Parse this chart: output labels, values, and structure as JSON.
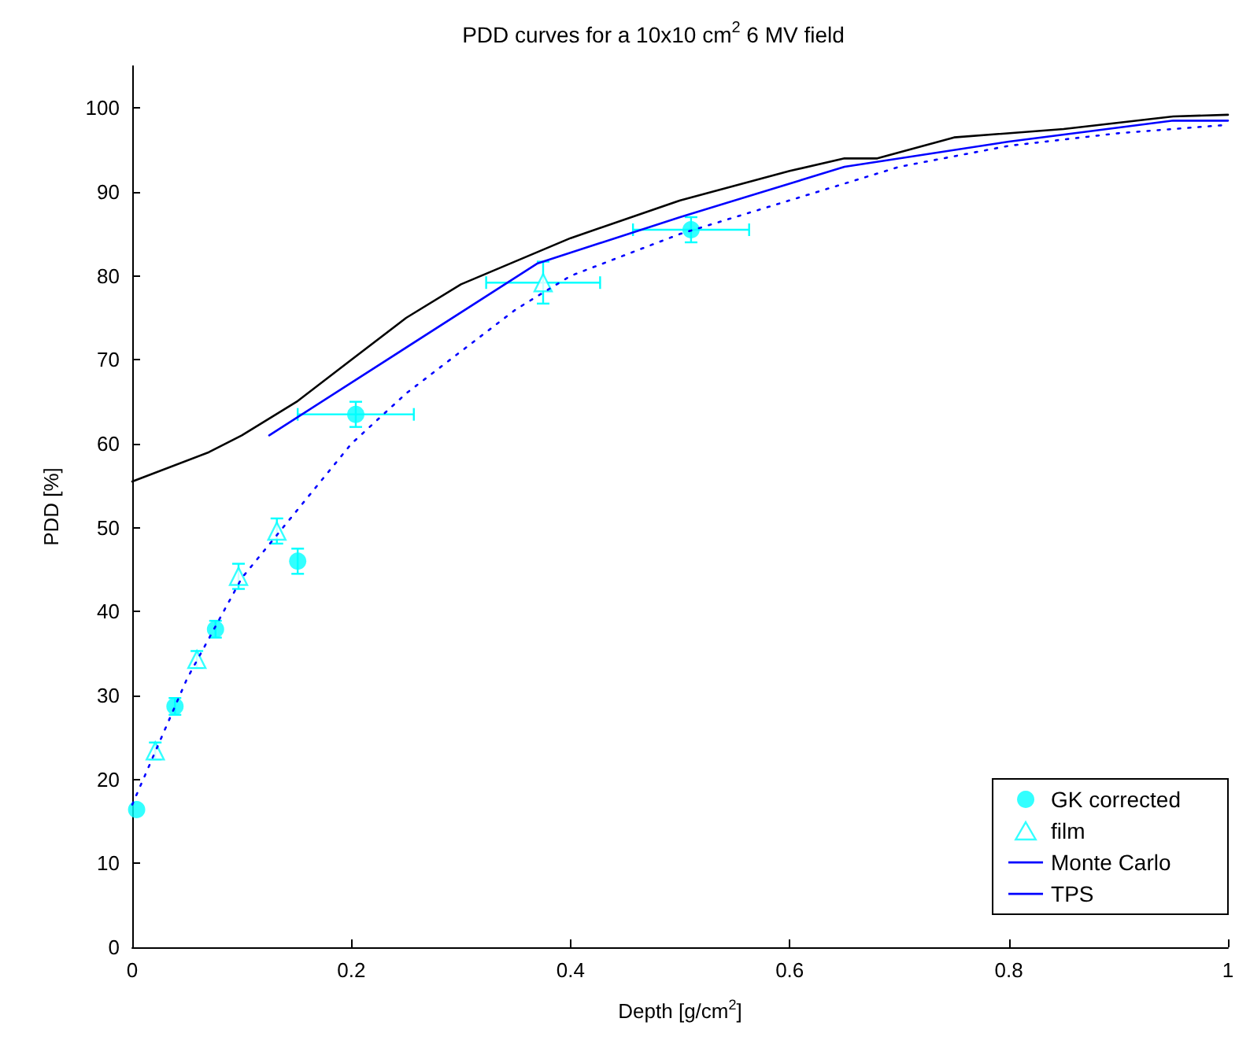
{
  "chart_data": {
    "type": "scatter",
    "title": "PDD curves for a 10x10 cm$^{2}$ 6 MV field",
    "xlabel": "Depth [g/cm$^{2}$]",
    "ylabel": "PDD [%]",
    "xlim": [
      0,
      1
    ],
    "xticks": [
      0,
      0.2,
      0.4,
      0.6,
      0.8,
      1
    ],
    "ylim": [
      0,
      105
    ],
    "yticks": [
      0,
      10,
      20,
      30,
      40,
      50,
      60,
      70,
      80,
      90,
      100
    ],
    "grid": false,
    "legend": "bottom right",
    "series": [
      {
        "name": "GK corrected",
        "marker": "circle",
        "color": "#00ffff",
        "x": [
          0.004,
          0.039,
          0.076,
          0.151,
          0.204,
          0.51
        ],
        "values": [
          16.4,
          28.7,
          37.9,
          46.0,
          63.5,
          85.5
        ],
        "errors": [
          null,
          1,
          1,
          1.5,
          1.5,
          1.5
        ],
        "xerrors": [
          null,
          null,
          null,
          null,
          0.053,
          0.053
        ]
      },
      {
        "name": "film",
        "marker": "triangle",
        "color": "#00ffff",
        "x": [
          0.021,
          0.059,
          0.097,
          0.132,
          0.375
        ],
        "values": [
          23.4,
          34.3,
          44.2,
          49.6,
          79.2
        ],
        "errors": [
          1,
          1,
          1.5,
          1.5,
          2.5
        ],
        "xerrors": [
          null,
          null,
          null,
          null,
          0.052
        ]
      },
      {
        "name": "Monte Carlo",
        "type": "line",
        "marker": "none",
        "line_style": "dotted",
        "color": "#0000ff",
        "x": [
          0,
          0.02,
          0.05,
          0.1,
          0.15,
          0.2,
          0.25,
          0.3,
          0.35,
          0.4,
          0.5,
          0.6,
          0.7,
          0.8,
          0.9,
          1
        ],
        "values": [
          17,
          23,
          32,
          44,
          52,
          60,
          66,
          71,
          76,
          80,
          85,
          89,
          93,
          95.5,
          97,
          98
        ]
      },
      {
        "name": "TPS",
        "type": "line",
        "marker": "none",
        "line_style": "solid",
        "color": "#0000ff",
        "x": [
          0.125,
          0.37,
          0.5,
          0.65,
          0.8,
          0.95,
          1
        ],
        "values": [
          61,
          81.5,
          87,
          93,
          96,
          98.5,
          98.5
        ]
      },
      {
        "type": "line",
        "marker": "none",
        "line_style": "solid",
        "color": "#000000",
        "x": [
          0,
          0.07,
          0.1,
          0.15,
          0.2,
          0.25,
          0.3,
          0.4,
          0.5,
          0.6,
          0.65,
          0.68,
          0.75,
          0.85,
          0.95,
          1
        ],
        "values": [
          55.5,
          59,
          61,
          65,
          70,
          75,
          79,
          84.5,
          89,
          92.5,
          94,
          94,
          96.5,
          97.5,
          99,
          99.2
        ]
      }
    ]
  }
}
